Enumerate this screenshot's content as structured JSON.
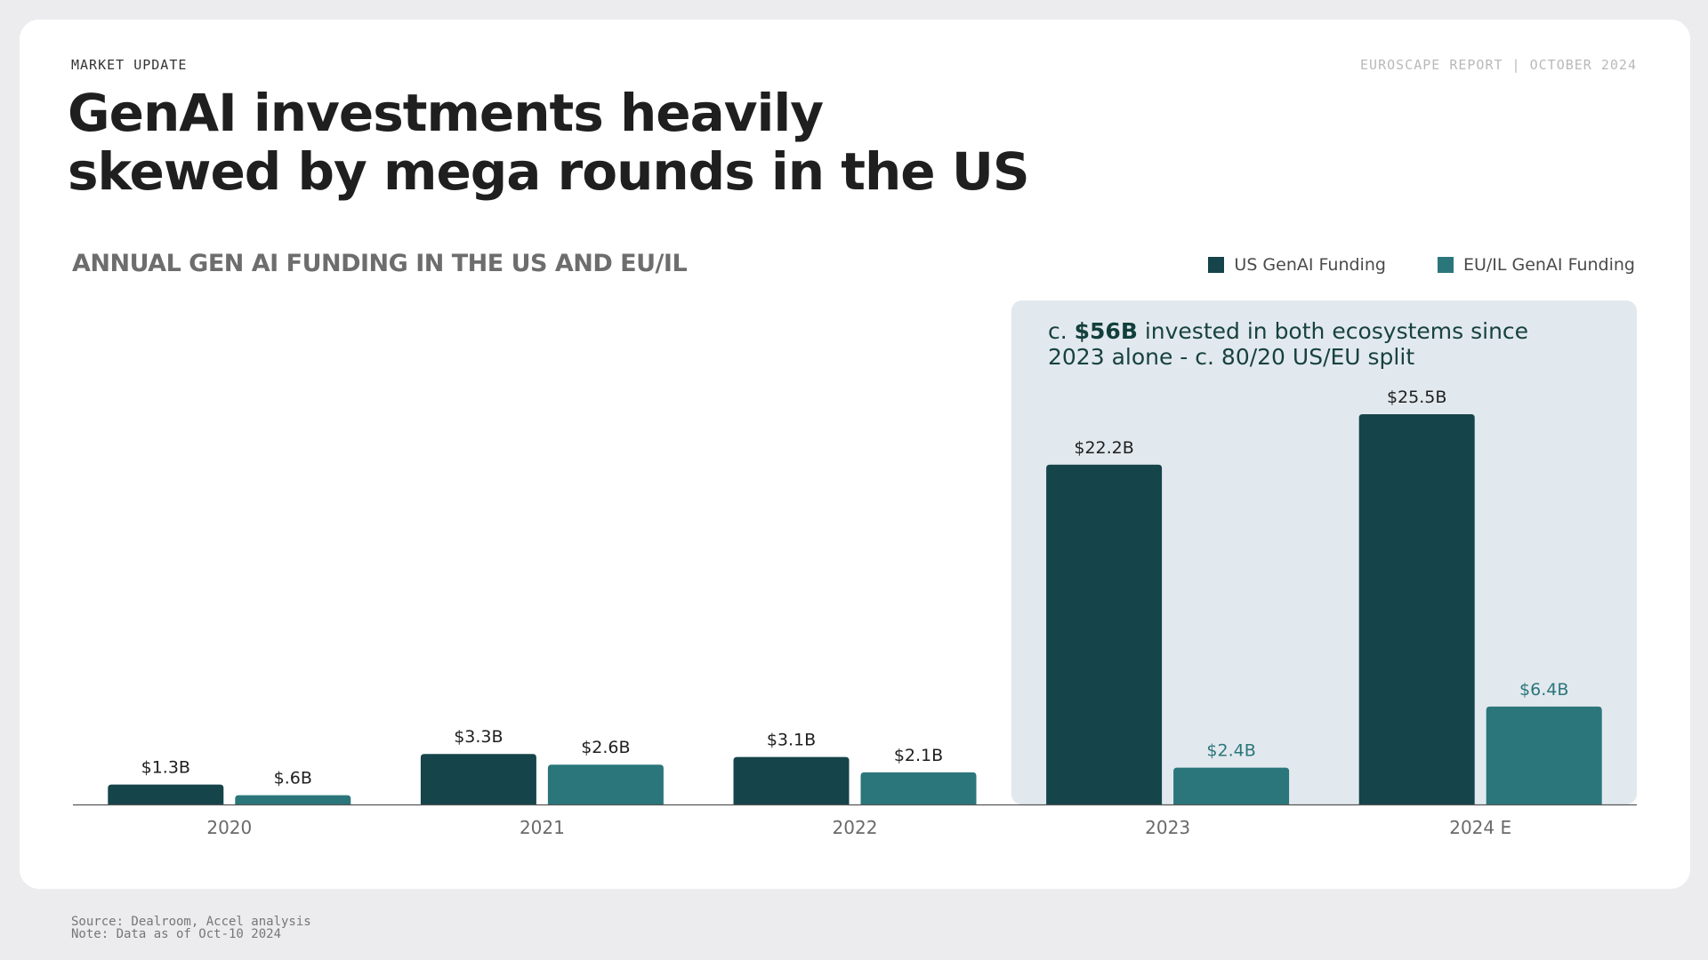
{
  "header": {
    "kicker": "MARKET UPDATE",
    "report": "EUROSCAPE REPORT | OCTOBER 2024",
    "title": "GenAI investments heavily skewed by mega rounds in the US"
  },
  "callout": {
    "prefix": "c. ",
    "highlight": "$56B",
    "suffix": " invested in both ecosystems since 2023 alone - c. 80/20 US/EU split"
  },
  "footer": {
    "source": "Source: Dealroom, Accel analysis",
    "note": "Note: Data as of Oct-10 2024"
  },
  "colors": {
    "us": "#15444a",
    "eu": "#2a767b",
    "eu_label": "#2a767b",
    "highlight_bg": "#e2e9ee",
    "axis": "#555555"
  },
  "chart_data": {
    "type": "bar",
    "title": "ANNUAL GEN AI FUNDING IN THE US AND EU/IL",
    "categories": [
      "2020",
      "2021",
      "2022",
      "2023",
      "2024 E"
    ],
    "series": [
      {
        "name": "US GenAI Funding",
        "values": [
          1.3,
          3.3,
          3.1,
          22.2,
          25.5
        ],
        "labels": [
          "$1.3B",
          "$3.3B",
          "$3.1B",
          "$22.2B",
          "$25.5B"
        ]
      },
      {
        "name": "EU/IL GenAI Funding",
        "values": [
          0.6,
          2.6,
          2.1,
          2.4,
          6.4
        ],
        "labels": [
          "$.6B",
          "$2.6B",
          "$2.1B",
          "$2.4B",
          "$6.4B"
        ]
      }
    ],
    "highlighted_categories": [
      "2023",
      "2024 E"
    ],
    "ylim": [
      0,
      25.5
    ],
    "grid": false,
    "legend": "top-right"
  }
}
